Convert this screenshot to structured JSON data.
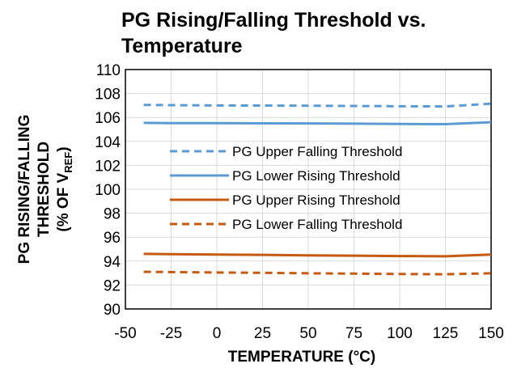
{
  "chart_data": {
    "type": "line",
    "title_line1": "PG Rising/Falling Threshold vs.",
    "title_line2": "Temperature",
    "xlabel": "TEMPERATURE (°C)",
    "ylabel_line1": "PG RISING/FALLING",
    "ylabel_line2": "THRESHOLD",
    "ylabel_line3_prefix": "(% OF V",
    "ylabel_line3_sub": "REF",
    "ylabel_line3_suffix": ")",
    "xlim": [
      -50,
      150
    ],
    "ylim": [
      90,
      110
    ],
    "x_ticks": [
      -50,
      -25,
      0,
      25,
      50,
      75,
      100,
      125,
      150
    ],
    "y_ticks": [
      90,
      92,
      94,
      96,
      98,
      100,
      102,
      104,
      106,
      108,
      110
    ],
    "grid": true,
    "legend_position": "center",
    "x": [
      -40,
      -25,
      0,
      25,
      50,
      75,
      100,
      125,
      150
    ],
    "series": [
      {
        "name": "PG Upper Falling Threshold",
        "color": "#5B9BD5",
        "dashed": true,
        "values": [
          107.05,
          107.03,
          107.0,
          106.99,
          106.98,
          106.96,
          106.93,
          106.92,
          107.15
        ]
      },
      {
        "name": "PG Lower Rising Threshold",
        "color": "#5B9BD5",
        "dashed": false,
        "values": [
          105.55,
          105.53,
          105.52,
          105.51,
          105.5,
          105.48,
          105.45,
          105.44,
          105.6
        ]
      },
      {
        "name": "PG Upper Rising Threshold",
        "color": "#C55A11",
        "dashed": false,
        "values": [
          94.6,
          94.58,
          94.55,
          94.52,
          94.48,
          94.45,
          94.42,
          94.4,
          94.55
        ]
      },
      {
        "name": "PG Lower Falling Threshold",
        "color": "#C55A11",
        "dashed": true,
        "values": [
          93.1,
          93.08,
          93.05,
          93.02,
          92.98,
          92.95,
          92.92,
          92.9,
          92.98
        ]
      }
    ]
  }
}
